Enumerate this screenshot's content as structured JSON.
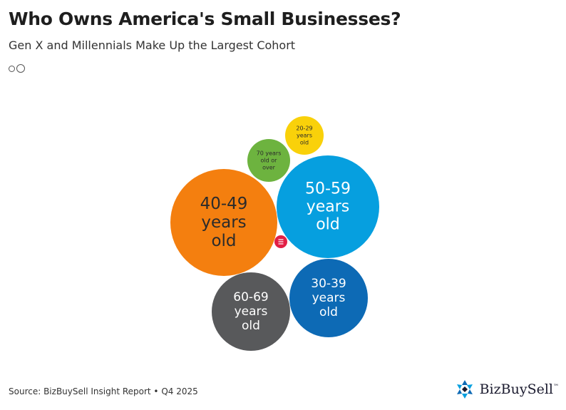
{
  "header": {
    "title": "Who Owns America's Small Businesses?",
    "subtitle": "Gen X and Millennials Make Up the Largest Cohort"
  },
  "footer": {
    "source": "Source: BizBuySell Insight Report • Q4 2025"
  },
  "logo": {
    "text": "BizBuySell",
    "mark": "™"
  },
  "colors": {
    "orange": "#f47f0f",
    "sky_blue": "#069fdf",
    "dark_gray": "#58595b",
    "royal_blue": "#0d6ab5",
    "green": "#6db33f",
    "yellow": "#f9d10a",
    "red": "#e21f45"
  },
  "chart_data": {
    "type": "bubble",
    "title": "Who Owns America's Small Businesses?",
    "subtitle": "Gen X and Millennials Make Up the Largest Cohort",
    "series": [
      {
        "name": "40-49 years old",
        "lines": [
          "40-49",
          "years",
          "old"
        ],
        "color": "#f47f0f",
        "text_color": "#2b2b2b"
      },
      {
        "name": "50-59 years old",
        "lines": [
          "50-59",
          "years",
          "old"
        ],
        "color": "#069fdf",
        "text_color": "#ffffff"
      },
      {
        "name": "60-69 years old",
        "lines": [
          "60-69",
          "years",
          "old"
        ],
        "color": "#58595b",
        "text_color": "#ffffff"
      },
      {
        "name": "30-39 years old",
        "lines": [
          "30-39",
          "years",
          "old"
        ],
        "color": "#0d6ab5",
        "text_color": "#ffffff"
      },
      {
        "name": "70 years old or over",
        "lines": [
          "70 years",
          "old or",
          "over"
        ],
        "color": "#6db33f",
        "text_color": "#2b2b2b"
      },
      {
        "name": "20-29 years old",
        "lines": [
          "20-29",
          "years",
          "old"
        ],
        "color": "#f9d10a",
        "text_color": "#2b2b2b"
      },
      {
        "name": "",
        "lines": [],
        "color": "#e21f45",
        "text_color": "#ffffff"
      }
    ]
  }
}
